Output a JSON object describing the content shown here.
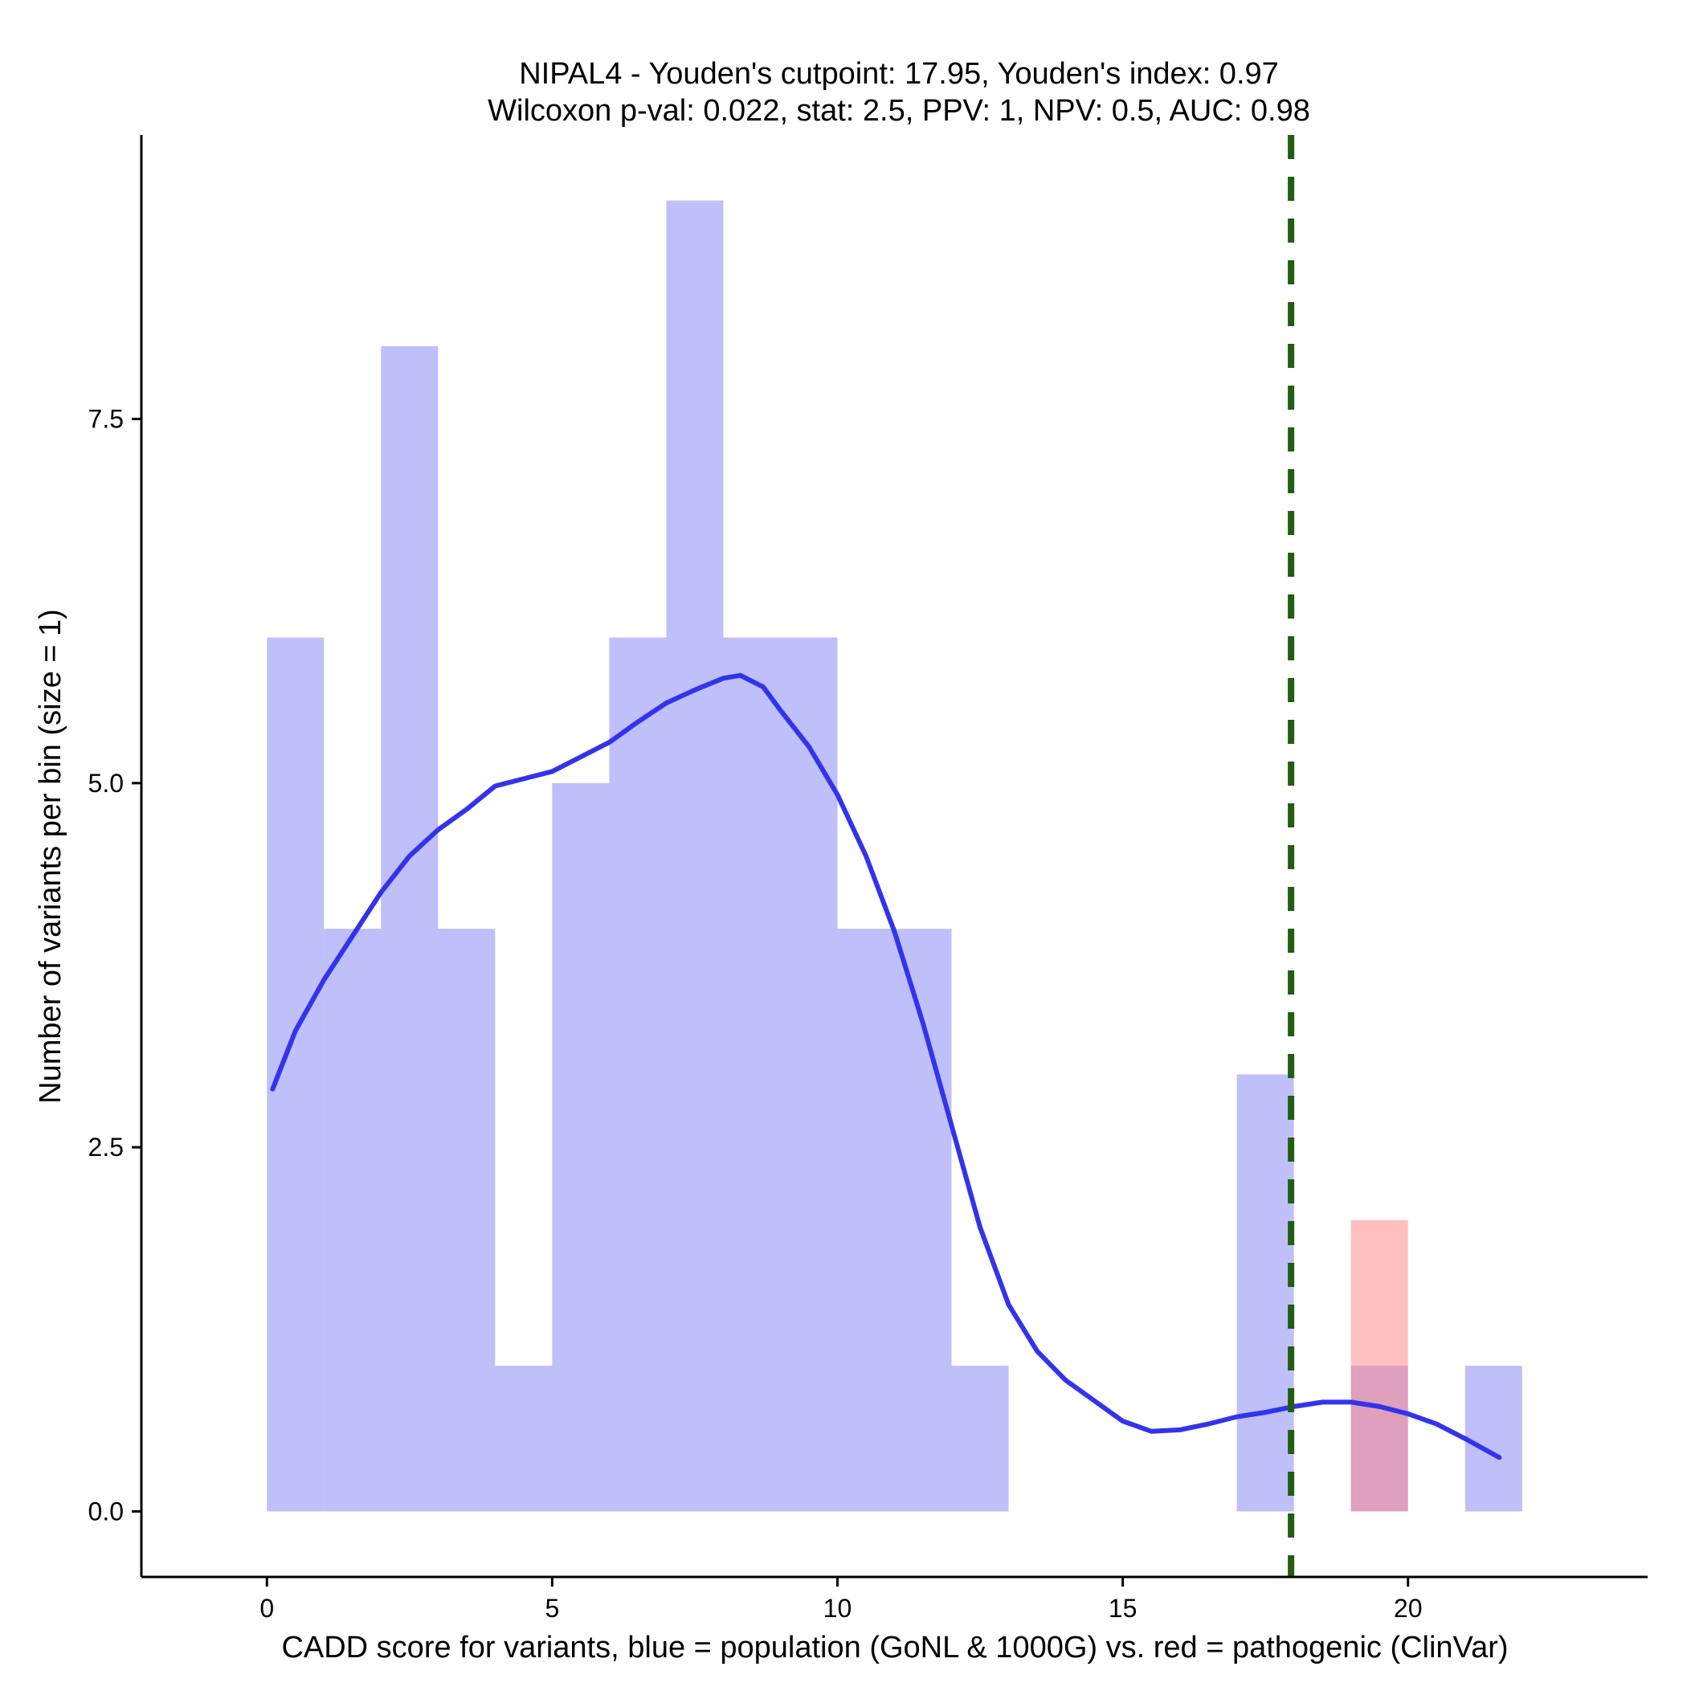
{
  "chart_data": {
    "type": "bar",
    "title_line1": "NIPAL4 - Youden's cutpoint: 17.95, Youden's index: 0.97",
    "title_line2": "Wilcoxon p-val: 0.022, stat: 2.5, PPV: 1, NPV: 0.5, AUC: 0.98",
    "xlabel": "CADD score for variants, blue = population (GoNL & 1000G) vs. red = pathogenic (ClinVar)",
    "ylabel": "Number of variants per bin (size = 1)",
    "xlim": [
      -2.2,
      24.2
    ],
    "ylim": [
      -0.45,
      9.45
    ],
    "x_ticks": [
      0,
      5,
      10,
      15,
      20
    ],
    "x_tick_labels": [
      "0",
      "5",
      "10",
      "15",
      "20"
    ],
    "y_ticks": [
      0,
      2.5,
      5,
      7.5
    ],
    "y_tick_labels": [
      "0.0",
      "2.5",
      "5.0",
      "7.5"
    ],
    "grid": false,
    "bin_width": 1,
    "series": [
      {
        "name": "population (GoNL & 1000G)",
        "color": "#8080f5",
        "opacity": 0.5,
        "bins": [
          {
            "x0": 0,
            "x1": 1,
            "count": 6
          },
          {
            "x0": 1,
            "x1": 2,
            "count": 4
          },
          {
            "x0": 2,
            "x1": 3,
            "count": 8
          },
          {
            "x0": 3,
            "x1": 4,
            "count": 4
          },
          {
            "x0": 4,
            "x1": 5,
            "count": 1
          },
          {
            "x0": 5,
            "x1": 6,
            "count": 5
          },
          {
            "x0": 6,
            "x1": 7,
            "count": 6
          },
          {
            "x0": 7,
            "x1": 8,
            "count": 9
          },
          {
            "x0": 8,
            "x1": 9,
            "count": 6
          },
          {
            "x0": 9,
            "x1": 10,
            "count": 6
          },
          {
            "x0": 10,
            "x1": 11,
            "count": 4
          },
          {
            "x0": 11,
            "x1": 12,
            "count": 4
          },
          {
            "x0": 12,
            "x1": 13,
            "count": 1
          },
          {
            "x0": 17,
            "x1": 18,
            "count": 3
          },
          {
            "x0": 19,
            "x1": 20,
            "count": 1
          },
          {
            "x0": 21,
            "x1": 22,
            "count": 1
          }
        ]
      },
      {
        "name": "pathogenic (ClinVar)",
        "color": "#ff8080",
        "opacity": 0.5,
        "bins": [
          {
            "x0": 19,
            "x1": 20,
            "count": 2
          }
        ]
      }
    ],
    "density_curve": {
      "color": "#3333ee",
      "x": [
        0.1,
        0.5,
        1.0,
        1.5,
        2.0,
        2.5,
        3.0,
        3.5,
        4.0,
        4.5,
        5.0,
        5.5,
        6.0,
        6.5,
        7.0,
        7.5,
        8.0,
        8.3,
        8.7,
        9.0,
        9.5,
        10.0,
        10.5,
        11.0,
        11.5,
        12.0,
        12.5,
        13.0,
        13.5,
        14.0,
        14.5,
        15.0,
        15.5,
        16.0,
        16.5,
        17.0,
        17.5,
        18.0,
        18.5,
        19.0,
        19.5,
        20.0,
        20.5,
        21.0,
        21.6
      ],
      "y": [
        2.9,
        3.3,
        3.65,
        3.95,
        4.25,
        4.5,
        4.68,
        4.82,
        4.98,
        5.03,
        5.08,
        5.18,
        5.28,
        5.42,
        5.55,
        5.64,
        5.72,
        5.74,
        5.66,
        5.5,
        5.25,
        4.92,
        4.5,
        3.98,
        3.35,
        2.65,
        1.95,
        1.42,
        1.1,
        0.9,
        0.76,
        0.62,
        0.55,
        0.56,
        0.6,
        0.65,
        0.68,
        0.72,
        0.75,
        0.75,
        0.72,
        0.67,
        0.6,
        0.5,
        0.37
      ]
    },
    "cutpoint": {
      "x": 17.95,
      "color": "#1f5f0f",
      "style": "dashed"
    }
  }
}
